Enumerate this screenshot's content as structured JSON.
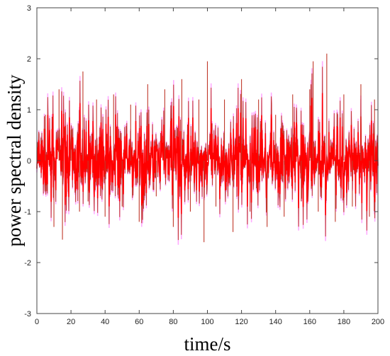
{
  "chart_data": {
    "type": "line",
    "title": "",
    "xlabel": "time/s",
    "ylabel": "power spectral density",
    "xlim": [
      0,
      200
    ],
    "ylim": [
      -3,
      3
    ],
    "x_ticks": [
      0,
      20,
      40,
      60,
      80,
      100,
      120,
      140,
      160,
      180,
      200
    ],
    "y_ticks": [
      -3,
      -2,
      -1,
      0,
      1,
      2,
      3
    ],
    "grid": false,
    "legend": "none",
    "series_colors": [
      "#c0392b",
      "#ff0000",
      "#ff66ff"
    ],
    "series": [
      {
        "x": [
          0,
          5,
          10,
          13,
          15,
          20,
          25,
          27,
          30,
          35,
          40,
          45,
          50,
          55,
          60,
          65,
          70,
          75,
          80,
          85,
          90,
          95,
          98,
          100,
          105,
          110,
          115,
          120,
          125,
          130,
          135,
          140,
          145,
          150,
          155,
          160,
          162,
          165,
          170,
          175,
          180,
          185,
          190,
          195,
          198,
          200
        ],
        "values": [
          0.2,
          0.9,
          -1.3,
          1.4,
          -1.55,
          0.6,
          -1.0,
          1.75,
          -0.8,
          1.2,
          -1.1,
          1.3,
          -0.9,
          1.1,
          -1.2,
          1.5,
          -0.7,
          1.4,
          -1.3,
          1.6,
          -1.0,
          1.2,
          -1.6,
          1.95,
          -0.9,
          1.2,
          -1.4,
          1.6,
          -1.0,
          1.2,
          -1.3,
          0.9,
          -1.1,
          1.3,
          -0.8,
          1.4,
          1.95,
          -1.0,
          2.1,
          -1.2,
          1.3,
          -0.9,
          1.5,
          -1.1,
          1.2,
          0.3
        ]
      }
    ]
  }
}
